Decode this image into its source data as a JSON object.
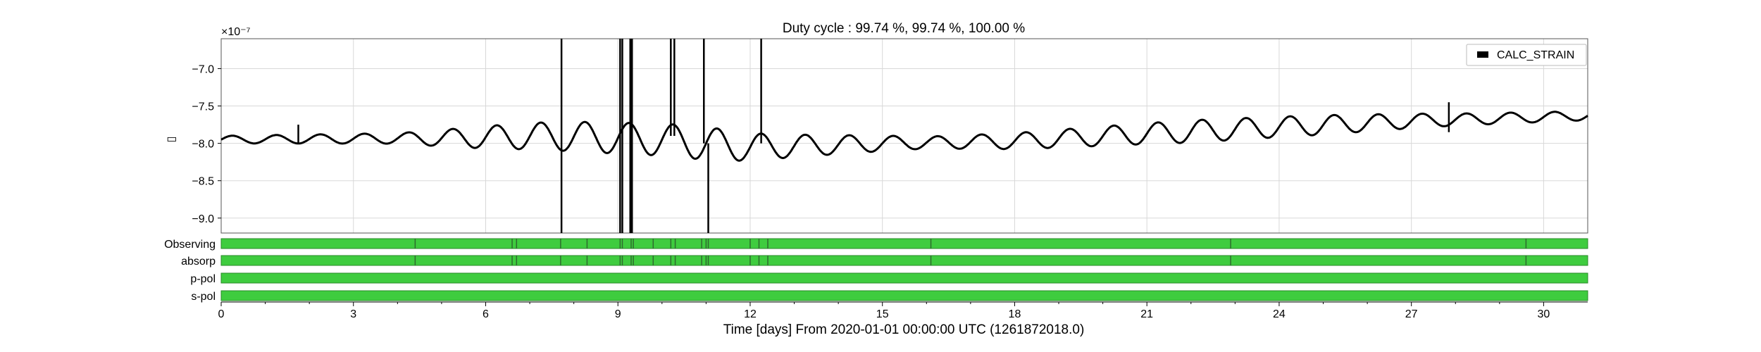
{
  "chart_data": {
    "type": "line",
    "title": "Duty cycle : 99.74 %, 99.74 %, 100.00 %",
    "xlabel": "Time [days] From 2020-01-01 00:00:00 UTC (1261872018.0)",
    "ylabel": "▯",
    "y_multiplier": "×10⁻⁷",
    "xlim": [
      0,
      31
    ],
    "ylim": [
      -9.2,
      -6.6
    ],
    "xticks": [
      0,
      3,
      6,
      9,
      12,
      15,
      18,
      21,
      24,
      27,
      30
    ],
    "yticks": [
      -7.0,
      -7.5,
      -8.0,
      -8.5,
      -9.0
    ],
    "ytick_labels": [
      "−7.0",
      "−7.5",
      "−8.0",
      "−8.5",
      "−9.0"
    ],
    "grid": true,
    "legend_position": "top-right",
    "series": [
      {
        "name": "CALC_STRAIN",
        "color": "#000000",
        "trend": [
          [
            0,
            -7.95
          ],
          [
            5,
            -7.93
          ],
          [
            7.5,
            -7.9
          ],
          [
            10,
            -7.95
          ],
          [
            12,
            -8.05
          ],
          [
            15,
            -8.0
          ],
          [
            18,
            -7.97
          ],
          [
            21,
            -7.87
          ],
          [
            24,
            -7.78
          ],
          [
            27,
            -7.7
          ],
          [
            31,
            -7.63
          ]
        ],
        "oscillation": {
          "period_days": 1.0,
          "amplitude": [
            [
              0,
              0.05
            ],
            [
              4,
              0.07
            ],
            [
              6,
              0.15
            ],
            [
              8,
              0.2
            ],
            [
              11,
              0.22
            ],
            [
              13,
              0.15
            ],
            [
              16,
              0.08
            ],
            [
              19,
              0.12
            ],
            [
              22,
              0.15
            ],
            [
              25,
              0.13
            ],
            [
              28,
              0.08
            ],
            [
              31,
              0.06
            ]
          ]
        },
        "spikes": [
          {
            "x": 7.72,
            "y_min": -9.2,
            "y_max": -6.6
          },
          {
            "x": 9.05,
            "y_min": -9.2,
            "y_max": -6.6
          },
          {
            "x": 9.1,
            "y_min": -9.2,
            "y_max": -6.6
          },
          {
            "x": 9.28,
            "y_min": -9.2,
            "y_max": -6.6
          },
          {
            "x": 9.32,
            "y_min": -9.2,
            "y_max": -6.6
          },
          {
            "x": 10.2,
            "y_min": -7.9,
            "y_max": -6.6
          },
          {
            "x": 10.28,
            "y_min": -7.9,
            "y_max": -6.6
          },
          {
            "x": 10.95,
            "y_min": -8.0,
            "y_max": -6.6
          },
          {
            "x": 11.05,
            "y_min": -9.2,
            "y_max": -8.0
          },
          {
            "x": 12.25,
            "y_min": -8.0,
            "y_max": -6.6
          },
          {
            "x": 1.75,
            "y_min": -8.0,
            "y_max": -7.75
          },
          {
            "x": 27.85,
            "y_min": -7.85,
            "y_max": -7.45
          }
        ]
      }
    ],
    "segments": {
      "color": "#3fcc3f",
      "edge_color": "#2a8a2a",
      "gap_color": "#2e6b2e",
      "rows": [
        {
          "label": "Observing",
          "gaps": [
            4.4,
            6.6,
            6.7,
            7.7,
            8.3,
            9.05,
            9.1,
            9.3,
            9.35,
            9.8,
            10.2,
            10.3,
            10.9,
            11.0,
            11.05,
            12.0,
            12.2,
            12.4,
            16.1,
            22.9,
            29.6
          ]
        },
        {
          "label": "absorp",
          "gaps": [
            4.4,
            6.6,
            6.7,
            7.7,
            8.3,
            9.05,
            9.1,
            9.3,
            9.35,
            9.8,
            10.2,
            10.3,
            10.9,
            11.0,
            11.05,
            12.0,
            12.2,
            12.4,
            16.1,
            22.9,
            29.6
          ]
        },
        {
          "label": "p-pol",
          "gaps": []
        },
        {
          "label": "s-pol",
          "gaps": []
        }
      ]
    }
  }
}
